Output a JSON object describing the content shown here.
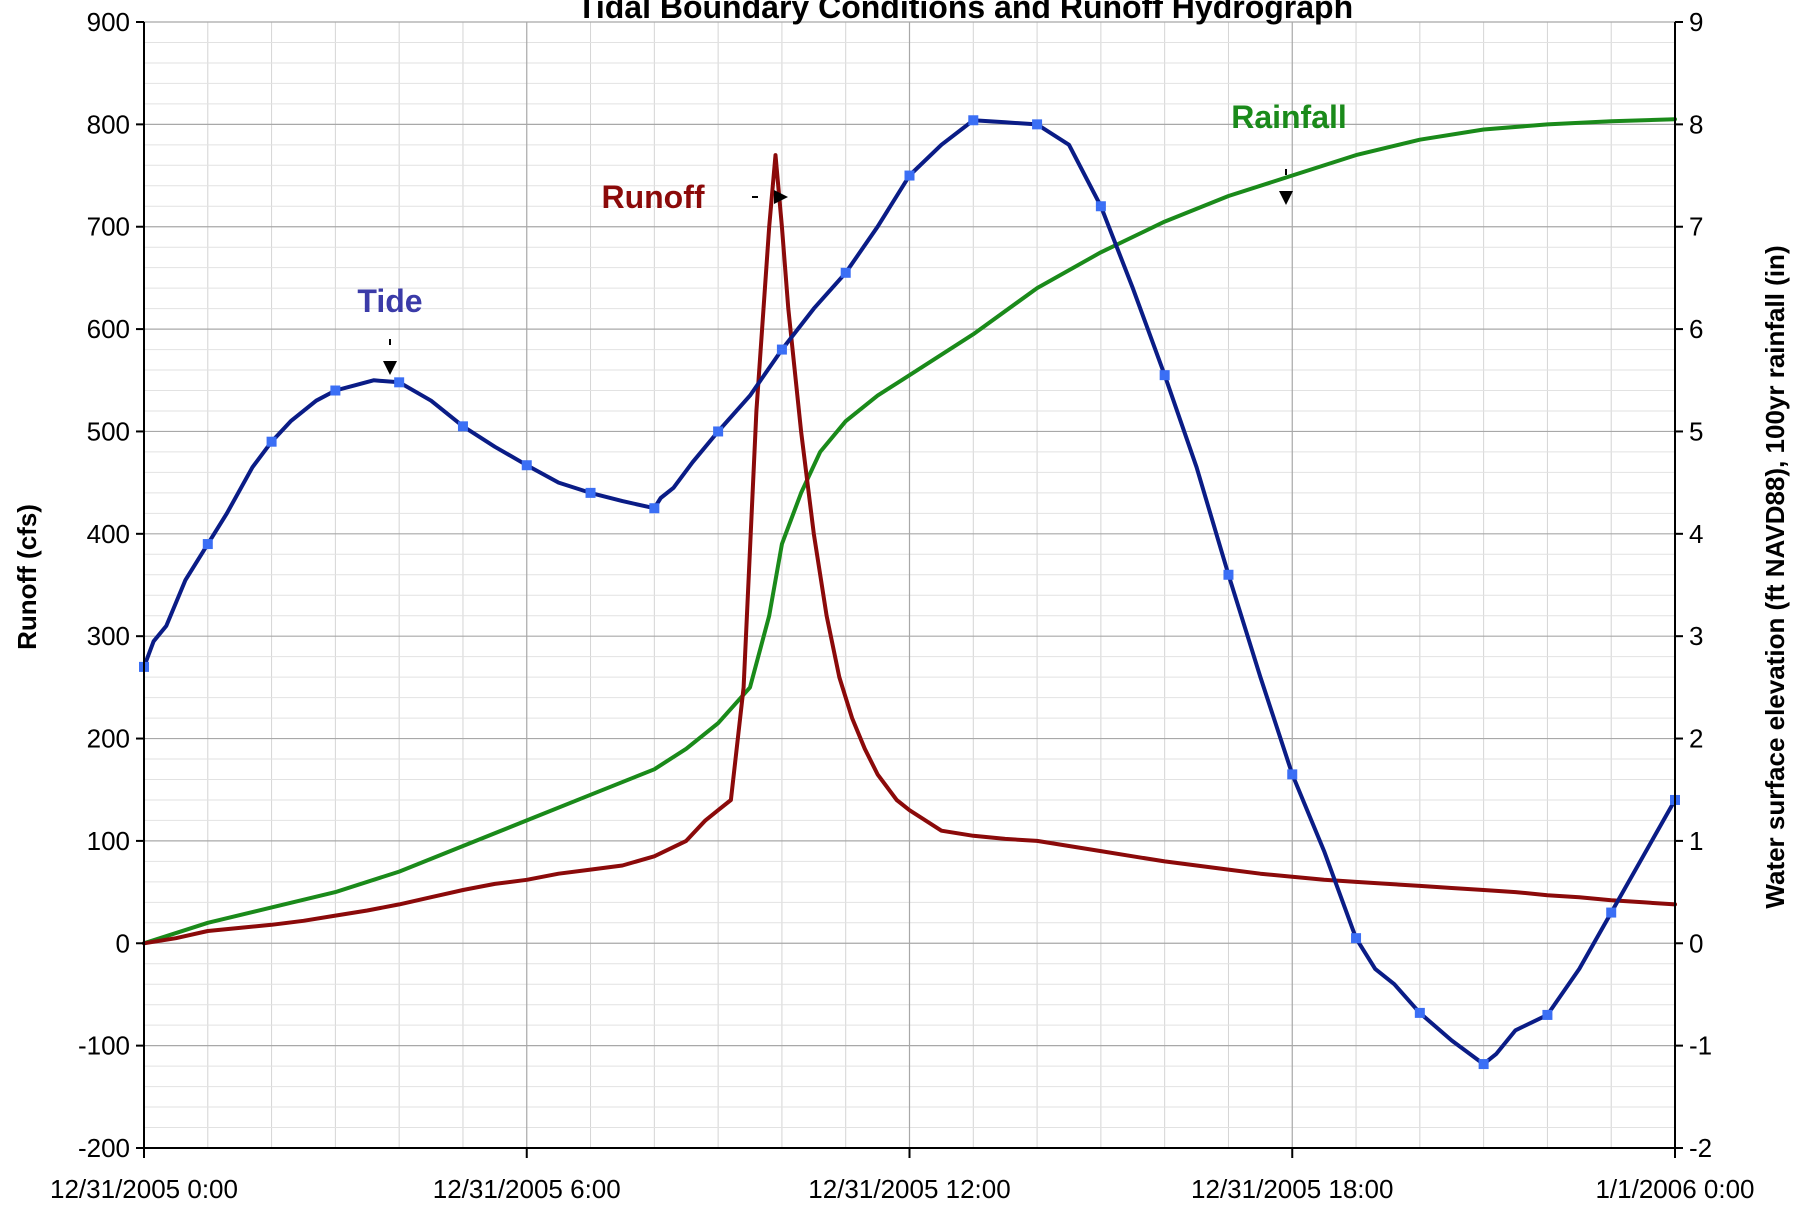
{
  "chart_data": {
    "type": "line",
    "title": "Tidal Boundary Conditions and Runoff Hydrograph",
    "xlabel": "",
    "ylabel_left": "Runoff (cfs)",
    "ylabel_right": "Water surface elevation (ft NAVD88), 100yr rainfall (in)",
    "x_ticks": [
      "12/31/2005 0:00",
      "12/31/2005 6:00",
      "12/31/2005 12:00",
      "12/31/2005 18:00",
      "1/1/2006 0:00"
    ],
    "x_unit": "hours from 12/31/2005 0:00",
    "xlim": [
      0,
      24
    ],
    "ylim_left": [
      -200,
      900
    ],
    "ylim_right": [
      -2,
      9
    ],
    "left_ticks": [
      -200,
      -100,
      0,
      100,
      200,
      300,
      400,
      500,
      600,
      700,
      800,
      900
    ],
    "right_ticks": [
      -2,
      -1,
      0,
      1,
      2,
      3,
      4,
      5,
      6,
      7,
      8,
      9
    ],
    "grid": true,
    "annotations": [
      {
        "text": "Tide",
        "series": "Tide"
      },
      {
        "text": "Runoff",
        "series": "Runoff"
      },
      {
        "text": "Rainfall",
        "series": "Rainfall"
      }
    ],
    "series": [
      {
        "name": "Tide",
        "axis": "right",
        "color": "#0a1c86",
        "marker_color": "#3b6ff5",
        "markers_every_hours": 1,
        "x": [
          0,
          0.15,
          0.35,
          0.65,
          1.0,
          1.3,
          1.7,
          2.0,
          2.3,
          2.7,
          3.0,
          3.3,
          3.6,
          4.0,
          4.5,
          5.0,
          5.5,
          6.0,
          6.5,
          7.0,
          7.5,
          8.0,
          8.1,
          8.3,
          8.6,
          9.0,
          9.5,
          10.0,
          10.5,
          11.0,
          11.5,
          12.0,
          12.5,
          13.0,
          13.5,
          14.0,
          14.5,
          15.0,
          15.5,
          16.0,
          16.5,
          17.0,
          17.5,
          18.0,
          18.5,
          19.0,
          19.3,
          19.6,
          20.0,
          20.5,
          21.0,
          21.2,
          21.5,
          22.0,
          22.5,
          23.0,
          23.5,
          24.0
        ],
        "y": [
          2.7,
          2.95,
          3.1,
          3.55,
          3.9,
          4.2,
          4.65,
          4.9,
          5.1,
          5.3,
          5.4,
          5.45,
          5.5,
          5.48,
          5.3,
          5.05,
          4.85,
          4.67,
          4.5,
          4.4,
          4.32,
          4.25,
          4.35,
          4.45,
          4.7,
          5.0,
          5.35,
          5.8,
          6.2,
          6.55,
          7.0,
          7.5,
          7.8,
          8.04,
          8.02,
          8.0,
          7.8,
          7.2,
          6.4,
          5.55,
          4.65,
          3.6,
          2.6,
          1.65,
          0.9,
          0.05,
          -0.25,
          -0.4,
          -0.68,
          -0.95,
          -1.18,
          -1.08,
          -0.85,
          -0.7,
          -0.25,
          0.3,
          0.85,
          1.4
        ]
      },
      {
        "name": "Runoff",
        "axis": "left",
        "color": "#8b0a0a",
        "x": [
          0,
          0.5,
          1.0,
          1.5,
          2.0,
          2.5,
          3.0,
          3.5,
          4.0,
          4.5,
          5.0,
          5.5,
          6.0,
          6.5,
          7.0,
          7.5,
          8.0,
          8.5,
          8.8,
          9.0,
          9.2,
          9.4,
          9.6,
          9.8,
          9.9,
          10.0,
          10.1,
          10.3,
          10.5,
          10.7,
          10.9,
          11.1,
          11.3,
          11.5,
          11.8,
          12.0,
          12.5,
          13.0,
          13.5,
          14.0,
          14.5,
          15.0,
          15.5,
          16.0,
          16.5,
          17.0,
          17.5,
          18.0,
          18.5,
          19.0,
          19.5,
          20.0,
          20.5,
          21.0,
          21.5,
          22.0,
          22.5,
          23.0,
          23.5,
          24.0
        ],
        "y": [
          0,
          5,
          12,
          15,
          18,
          22,
          27,
          32,
          38,
          45,
          52,
          58,
          62,
          68,
          72,
          76,
          85,
          100,
          120,
          130,
          140,
          250,
          520,
          700,
          770,
          700,
          620,
          500,
          400,
          320,
          260,
          220,
          190,
          165,
          140,
          130,
          110,
          105,
          102,
          100,
          95,
          90,
          85,
          80,
          76,
          72,
          68,
          65,
          62,
          60,
          58,
          56,
          54,
          52,
          50,
          47,
          45,
          42,
          40,
          38
        ]
      },
      {
        "name": "Rainfall",
        "axis": "right",
        "color": "#1a8a1a",
        "x": [
          0,
          1,
          2,
          3,
          4,
          5,
          6,
          7,
          8,
          8.5,
          9.0,
          9.5,
          9.8,
          10.0,
          10.3,
          10.6,
          11.0,
          11.5,
          12.0,
          13.0,
          14.0,
          15.0,
          16.0,
          17.0,
          18.0,
          19.0,
          20.0,
          21.0,
          22.0,
          23.0,
          24.0
        ],
        "y": [
          0,
          0.2,
          0.35,
          0.5,
          0.7,
          0.95,
          1.2,
          1.45,
          1.7,
          1.9,
          2.15,
          2.5,
          3.2,
          3.9,
          4.4,
          4.8,
          5.1,
          5.35,
          5.55,
          5.95,
          6.4,
          6.75,
          7.05,
          7.3,
          7.5,
          7.7,
          7.85,
          7.95,
          8.0,
          8.03,
          8.05
        ]
      }
    ]
  }
}
